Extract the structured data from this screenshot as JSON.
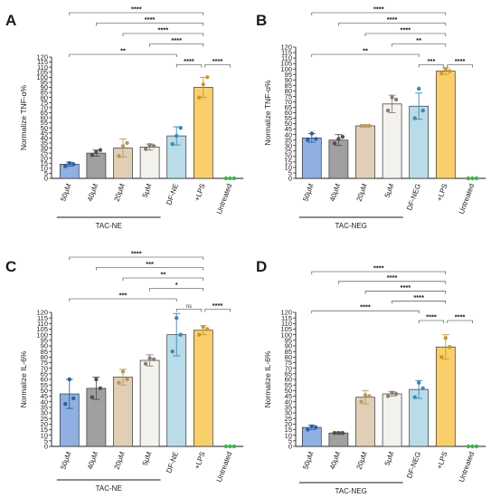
{
  "colors": {
    "50uM": "#8fb0e0",
    "40uM": "#a0a0a0",
    "20uM": "#e0cfb4",
    "5uM": "#f4f2ee",
    "DF": "#b9dce8",
    "LPS": "#f9cf6c",
    "untreated": "#3cb44b",
    "pt_50uM": "#2e5fa8",
    "pt_40uM": "#505050",
    "pt_20uM": "#b89a62",
    "pt_5uM": "#8a8070",
    "pt_DF": "#3a8ab8",
    "pt_LPS": "#c89a2a"
  },
  "chart_data": [
    {
      "type": "bar",
      "panel": "A",
      "ylabel": "Normalize TNF-α%",
      "ylim": [
        0,
        120
      ],
      "yticks": [
        0,
        5,
        10,
        15,
        20,
        25,
        30,
        35,
        40,
        45,
        50,
        55,
        60,
        65,
        70,
        75,
        80,
        85,
        90,
        95,
        100,
        105,
        110,
        115,
        120
      ],
      "categories": [
        "50μM",
        "40μM",
        "20μM",
        "5μM",
        "DF-NE",
        "+LPS",
        "Untreated"
      ],
      "values": [
        14,
        25,
        30,
        31,
        42,
        90,
        0
      ],
      "errors": [
        2,
        3,
        9,
        3,
        9,
        10,
        0
      ],
      "points": [
        [
          12,
          15,
          14
        ],
        [
          23,
          26,
          28
        ],
        [
          22,
          32,
          35
        ],
        [
          29,
          33,
          32
        ],
        [
          34,
          42,
          50
        ],
        [
          80,
          93,
          100
        ],
        [
          0,
          0,
          0
        ]
      ],
      "group_label": "TAC-NE",
      "group_span": [
        0,
        3
      ],
      "comparisons": [
        {
          "from": 0,
          "to": 5,
          "label": "****"
        },
        {
          "from": 1,
          "to": 5,
          "label": "****"
        },
        {
          "from": 2,
          "to": 5,
          "label": "****"
        },
        {
          "from": 3,
          "to": 5,
          "label": "****"
        },
        {
          "from": 0,
          "to": 4,
          "label": "**"
        },
        {
          "from": 4,
          "to": 5,
          "label": "****"
        },
        {
          "from": 5,
          "to": 6,
          "label": "****"
        }
      ]
    },
    {
      "type": "bar",
      "panel": "B",
      "ylabel": "Normalize TNF-α%",
      "ylim": [
        0,
        120
      ],
      "yticks": [
        0,
        5,
        10,
        15,
        20,
        25,
        30,
        35,
        40,
        45,
        50,
        55,
        60,
        65,
        70,
        75,
        80,
        85,
        90,
        95,
        100,
        105,
        110,
        115,
        120
      ],
      "categories": [
        "50μM",
        "40μM",
        "20μM",
        "5μM",
        "DF-NEG",
        "+LPS",
        "Untreated"
      ],
      "values": [
        37,
        35,
        48,
        68,
        66,
        98,
        0
      ],
      "errors": [
        4,
        5,
        1,
        8,
        12,
        3,
        0
      ],
      "points": [
        [
          35,
          41,
          36
        ],
        [
          32,
          36,
          38
        ],
        [
          48,
          48,
          48
        ],
        [
          62,
          74,
          72
        ],
        [
          55,
          82,
          62
        ],
        [
          96,
          100,
          98
        ],
        [
          0,
          0,
          0
        ]
      ],
      "group_label": "TAC-NEG",
      "group_span": [
        0,
        3
      ],
      "comparisons": [
        {
          "from": 0,
          "to": 5,
          "label": "****"
        },
        {
          "from": 1,
          "to": 5,
          "label": "****"
        },
        {
          "from": 2,
          "to": 5,
          "label": "****"
        },
        {
          "from": 3,
          "to": 5,
          "label": "**"
        },
        {
          "from": 0,
          "to": 4,
          "label": "**"
        },
        {
          "from": 4,
          "to": 5,
          "label": "***"
        },
        {
          "from": 5,
          "to": 6,
          "label": "****"
        }
      ]
    },
    {
      "type": "bar",
      "panel": "C",
      "ylabel": "Normalize IL-6%",
      "ylim": [
        0,
        120
      ],
      "yticks": [
        0,
        5,
        10,
        15,
        20,
        25,
        30,
        35,
        40,
        45,
        50,
        55,
        60,
        65,
        70,
        75,
        80,
        85,
        90,
        95,
        100,
        105,
        110,
        115,
        120
      ],
      "categories": [
        "50μM",
        "40μM",
        "20μM",
        "5μM",
        "DF-NE",
        "+LPS",
        "Untreated"
      ],
      "values": [
        47,
        52,
        62,
        77,
        100,
        104,
        0
      ],
      "errors": [
        13,
        10,
        7,
        5,
        19,
        4,
        0
      ],
      "points": [
        [
          38,
          60,
          43
        ],
        [
          44,
          60,
          52
        ],
        [
          57,
          67,
          60
        ],
        [
          74,
          79,
          78
        ],
        [
          85,
          115,
          100
        ],
        [
          100,
          107,
          105
        ],
        [
          0,
          0,
          0
        ]
      ],
      "group_label": "TAC-NE",
      "group_span": [
        0,
        3
      ],
      "comparisons": [
        {
          "from": 0,
          "to": 5,
          "label": "****"
        },
        {
          "from": 1,
          "to": 5,
          "label": "***"
        },
        {
          "from": 2,
          "to": 5,
          "label": "**"
        },
        {
          "from": 3,
          "to": 5,
          "label": "*"
        },
        {
          "from": 0,
          "to": 4,
          "label": "***"
        },
        {
          "from": 4,
          "to": 5,
          "label": "ns"
        },
        {
          "from": 5,
          "to": 6,
          "label": "****"
        }
      ]
    },
    {
      "type": "bar",
      "panel": "D",
      "ylabel": "Normalize IL-6%",
      "ylim": [
        0,
        120
      ],
      "yticks": [
        0,
        5,
        10,
        15,
        20,
        25,
        30,
        35,
        40,
        45,
        50,
        55,
        60,
        65,
        70,
        75,
        80,
        85,
        90,
        95,
        100,
        105,
        110,
        115,
        120
      ],
      "categories": [
        "50μM",
        "40μM",
        "20μM",
        "5μM",
        "DF-NEG",
        "+LPS",
        "Untreated"
      ],
      "values": [
        17,
        12,
        44,
        47,
        51,
        89,
        0
      ],
      "errors": [
        2,
        1,
        6,
        2,
        8,
        11,
        0
      ],
      "points": [
        [
          15,
          18,
          17
        ],
        [
          12,
          12,
          12
        ],
        [
          40,
          46,
          45
        ],
        [
          45,
          48,
          47
        ],
        [
          44,
          57,
          52
        ],
        [
          80,
          97,
          89
        ],
        [
          0,
          0,
          0
        ]
      ],
      "group_label": "TAC-NEG",
      "group_span": [
        0,
        3
      ],
      "comparisons": [
        {
          "from": 0,
          "to": 5,
          "label": "****"
        },
        {
          "from": 1,
          "to": 5,
          "label": "****"
        },
        {
          "from": 2,
          "to": 5,
          "label": "****"
        },
        {
          "from": 3,
          "to": 5,
          "label": "****"
        },
        {
          "from": 0,
          "to": 4,
          "label": "****"
        },
        {
          "from": 4,
          "to": 5,
          "label": "****"
        },
        {
          "from": 5,
          "to": 6,
          "label": "****"
        }
      ]
    }
  ]
}
